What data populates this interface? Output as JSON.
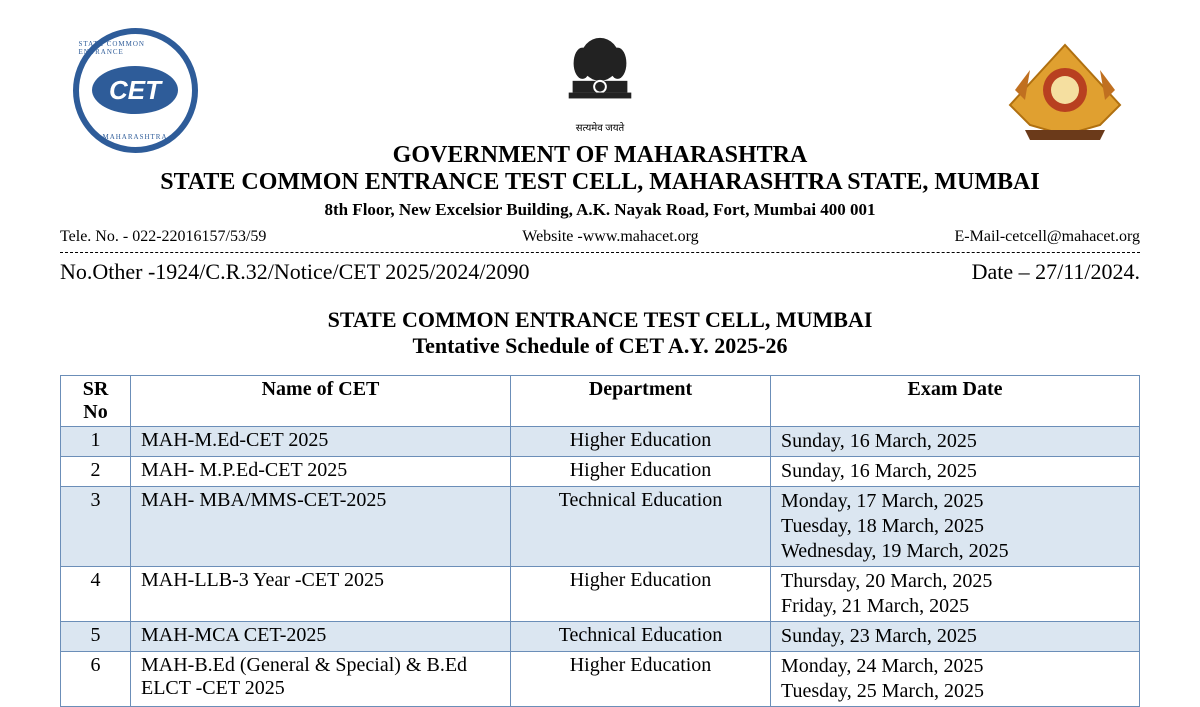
{
  "colors": {
    "brand_blue": "#2e5c99",
    "table_border": "#6b8eb8",
    "row_stripe": "#dbe6f1",
    "background": "#ffffff",
    "text": "#000000"
  },
  "fonts": {
    "family": "Times New Roman",
    "title_size_pt": 22,
    "body_size_pt": 20,
    "addr_size_pt": 17,
    "contact_size_pt": 16
  },
  "logos": {
    "left_badge_text": "CET",
    "left_ring_top": "STATE COMMON ENTRANCE",
    "left_ring_bottom": "MAHARASHTRA",
    "center_motto": "सत्यमेव जयते"
  },
  "header": {
    "gov": "GOVERNMENT OF MAHARASHTRA",
    "cell": "STATE COMMON ENTRANCE TEST CELL, MAHARASHTRA STATE, MUMBAI",
    "address": "8th Floor, New Excelsior Building, A.K. Nayak Road, Fort, Mumbai 400 001",
    "tele": "Tele. No. - 022-22016157/53/59",
    "website": "Website -www.mahacet.org",
    "email": "E-Mail-cetcell@mahacet.org",
    "ref_no": "No.Other -1924/C.R.32/Notice/CET 2025/2024/2090",
    "date": "Date – 27/11/2024."
  },
  "title": {
    "line1": "STATE COMMON ENTRANCE TEST CELL, MUMBAI",
    "line2": "Tentative Schedule of CET A.Y. 2025-26"
  },
  "table": {
    "columns": [
      "SR No",
      "Name of CET",
      "Department",
      "Exam Date"
    ],
    "col_align": [
      "center",
      "left",
      "center",
      "left"
    ],
    "stripe_color": "#dbe6f1",
    "striped_rows": [
      0,
      2,
      4
    ],
    "rows": [
      {
        "sr": "1",
        "name": "MAH-M.Ed-CET 2025",
        "dept": "Higher Education",
        "dates": [
          "Sunday, 16 March, 2025"
        ]
      },
      {
        "sr": "2",
        "name": "MAH- M.P.Ed-CET 2025",
        "dept": "Higher Education",
        "dates": [
          "Sunday, 16 March, 2025"
        ]
      },
      {
        "sr": "3",
        "name": "MAH- MBA/MMS-CET-2025",
        "dept": "Technical Education",
        "dates": [
          "Monday, 17 March, 2025",
          "Tuesday, 18 March, 2025",
          "Wednesday, 19 March, 2025"
        ]
      },
      {
        "sr": "4",
        "name": "MAH-LLB-3 Year -CET 2025",
        "dept": "Higher Education",
        "dates": [
          "Thursday, 20 March, 2025",
          "Friday, 21 March, 2025"
        ]
      },
      {
        "sr": "5",
        "name": "MAH-MCA CET-2025",
        "dept": "Technical Education",
        "dates": [
          "Sunday, 23 March, 2025"
        ]
      },
      {
        "sr": "6",
        "name": "MAH-B.Ed (General & Special) & B.Ed ELCT -CET 2025",
        "dept": "Higher Education",
        "dates": [
          "Monday, 24 March, 2025",
          "Tuesday, 25 March, 2025"
        ]
      }
    ]
  }
}
